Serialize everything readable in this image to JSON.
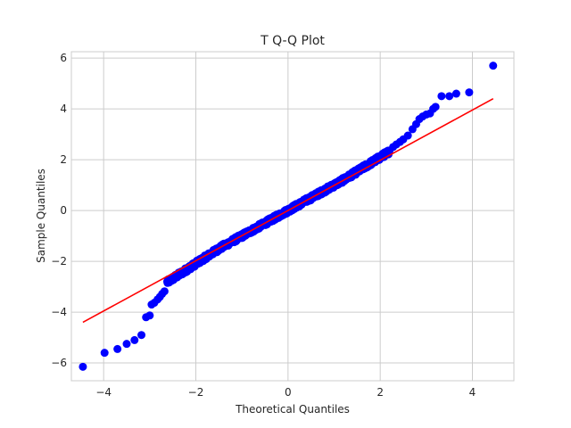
{
  "chart_data": {
    "type": "scatter",
    "title": "T Q-Q Plot",
    "xlabel": "Theoretical Quantiles",
    "ylabel": "Sample Quantiles",
    "xlim": [
      -4.7,
      4.9
    ],
    "ylim": [
      -6.7,
      6.25
    ],
    "xticks": [
      -4,
      -2,
      0,
      2,
      4
    ],
    "yticks": [
      -6,
      -4,
      -2,
      0,
      2,
      4,
      6
    ],
    "xtick_labels": [
      "−4",
      "−2",
      "0",
      "2",
      "4"
    ],
    "ytick_labels": [
      "−6",
      "−4",
      "−2",
      "0",
      "2",
      "4",
      "6"
    ],
    "grid": true,
    "point_color": "#0000ff",
    "line_color": "#ff0000",
    "reference_line": [
      [
        -4.45,
        -4.4
      ],
      [
        4.45,
        4.4
      ]
    ],
    "outlier_points": [
      [
        -4.45,
        -6.15
      ],
      [
        -3.98,
        -5.6
      ],
      [
        -3.7,
        -5.45
      ],
      [
        -3.5,
        -5.25
      ],
      [
        -3.33,
        -5.1
      ],
      [
        -3.18,
        -4.9
      ],
      [
        -3.08,
        -4.2
      ],
      [
        -3.0,
        -4.13
      ],
      [
        -2.96,
        -3.7
      ],
      [
        -2.9,
        -3.63
      ],
      [
        -2.83,
        -3.5
      ],
      [
        -2.78,
        -3.4
      ],
      [
        -2.73,
        -3.28
      ],
      [
        -2.68,
        -3.18
      ],
      [
        2.2,
        2.35
      ],
      [
        2.28,
        2.5
      ],
      [
        2.35,
        2.6
      ],
      [
        2.43,
        2.7
      ],
      [
        2.5,
        2.8
      ],
      [
        2.6,
        2.95
      ],
      [
        2.7,
        3.2
      ],
      [
        2.78,
        3.4
      ],
      [
        2.85,
        3.6
      ],
      [
        2.92,
        3.7
      ],
      [
        3.0,
        3.78
      ],
      [
        3.08,
        3.82
      ],
      [
        3.15,
        4.0
      ],
      [
        3.2,
        4.08
      ],
      [
        3.33,
        4.5
      ],
      [
        3.5,
        4.5
      ],
      [
        3.65,
        4.6
      ],
      [
        3.93,
        4.65
      ],
      [
        4.45,
        5.7
      ]
    ]
  }
}
